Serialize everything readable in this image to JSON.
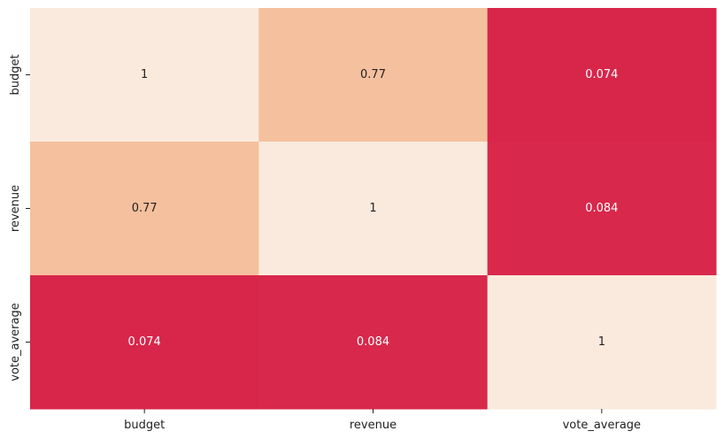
{
  "chart_data": {
    "type": "heatmap",
    "title": "",
    "xlabel": "",
    "ylabel": "",
    "x_categories": [
      "budget",
      "revenue",
      "vote_average"
    ],
    "y_categories": [
      "budget",
      "revenue",
      "vote_average"
    ],
    "values": [
      [
        1,
        0.77,
        0.074
      ],
      [
        0.77,
        1,
        0.084
      ],
      [
        0.074,
        0.084,
        1
      ]
    ],
    "annotations": [
      [
        "1",
        "0.77",
        "0.074"
      ],
      [
        "0.77",
        "1",
        "0.084"
      ],
      [
        "0.074",
        "0.084",
        "1"
      ]
    ],
    "colors": {
      "low": "#d8264a",
      "mid": "#f5c09e",
      "high": "#faeadd",
      "text": "#222222",
      "text_on_dark": "#ffffff"
    },
    "colorbar": false,
    "grid": false
  }
}
